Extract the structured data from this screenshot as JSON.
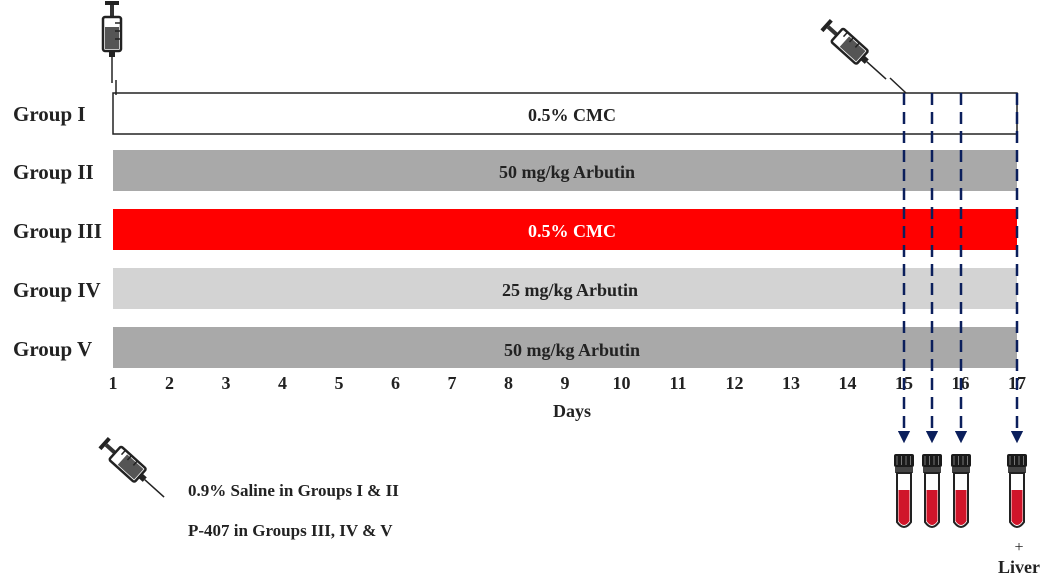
{
  "groups": [
    {
      "name": "Group I",
      "treatment": "0.5% CMC",
      "fill": "#ffffff",
      "text_color": "#222222"
    },
    {
      "name": "Group II",
      "treatment": "50 mg/kg Arbutin",
      "fill": "#a9a9a9",
      "text_color": "#222222"
    },
    {
      "name": "Group III",
      "treatment": "0.5% CMC",
      "fill": "#ff0000",
      "text_color": "#ffffff"
    },
    {
      "name": "Group IV",
      "treatment": "25 mg/kg Arbutin",
      "fill": "#d3d3d3",
      "text_color": "#222222"
    },
    {
      "name": "Group V",
      "treatment": "50 mg/kg Arbutin",
      "fill": "#a9a9a9",
      "text_color": "#222222"
    }
  ],
  "days": [
    "1",
    "2",
    "3",
    "4",
    "5",
    "6",
    "7",
    "8",
    "9",
    "10",
    "11",
    "12",
    "13",
    "14",
    "15",
    "16",
    "17"
  ],
  "axis_label": "Days",
  "sampling": {
    "days": [
      15,
      15.5,
      16,
      17
    ],
    "arrow_color": "#0b1f5c",
    "tube_blood_color": "#d0152a"
  },
  "injection_notes": [
    "0.9% Saline in Groups I & II",
    "P-407 in Groups III, IV & V"
  ],
  "final_sample": {
    "plus": "+",
    "label": "Liver"
  }
}
